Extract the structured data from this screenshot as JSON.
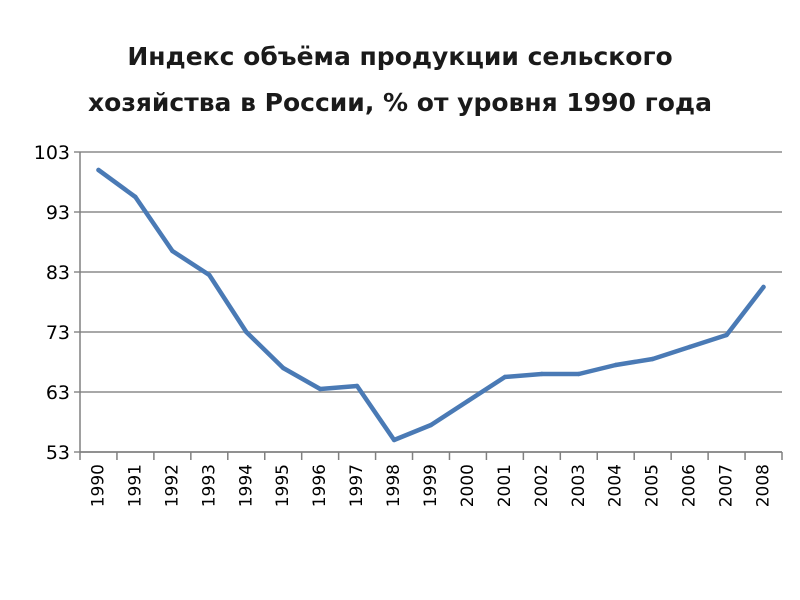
{
  "chart_data": {
    "type": "line",
    "title_lines": [
      "Индекс объёма продукции сельского",
      "хозяйства в России, % от уровня 1990 года"
    ],
    "xlabel": "",
    "ylabel": "",
    "categories": [
      "1990",
      "1991",
      "1992",
      "1993",
      "1994",
      "1995",
      "1996",
      "1997",
      "1998",
      "1999",
      "2000",
      "2001",
      "2002",
      "2003",
      "2004",
      "2005",
      "2006",
      "2007",
      "2008"
    ],
    "series": [
      {
        "values": [
          100,
          95.5,
          86.5,
          82.5,
          73,
          67,
          63.5,
          64,
          55,
          57.5,
          61.5,
          65.5,
          66,
          66,
          67.5,
          68.5,
          70.5,
          72.5,
          80.5
        ]
      }
    ],
    "yticks": [
      "53",
      "63",
      "73",
      "83",
      "93",
      "103"
    ],
    "ylim": [
      53,
      103
    ],
    "grid": true,
    "legend": "none",
    "line_color": "#4a7ab5"
  }
}
